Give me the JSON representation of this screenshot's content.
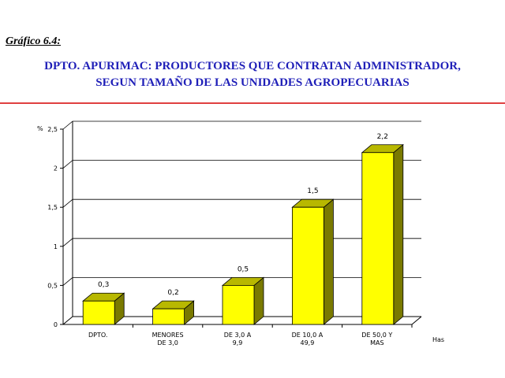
{
  "figure_label": "Gráfico 6.4:",
  "title_lines": [
    "DPTO. APURIMAC: PRODUCTORES QUE CONTRATAN ADMINISTRADOR,",
    "SEGUN TAMAÑO DE LAS UNIDADES AGROPECUARIAS"
  ],
  "colors": {
    "title": "#1f1fb8",
    "rule": "#e04040",
    "bar_front": "#ffff00",
    "bar_top": "#b8b800",
    "bar_side": "#7a7a00"
  },
  "chart_data": {
    "type": "bar",
    "title": "DPTO. APURIMAC: PRODUCTORES QUE CONTRATAN ADMINISTRADOR, SEGUN TAMAÑO DE LAS UNIDADES AGROPECUARIAS",
    "ylabel": "%",
    "xlabel": "Has",
    "ylim": [
      0,
      2.5
    ],
    "y_ticks": [
      "0",
      "0,5",
      "1",
      "1,5",
      "2",
      "2,5"
    ],
    "grid": true,
    "categories": [
      [
        "DPTO."
      ],
      [
        "MENORES",
        "DE 3,0"
      ],
      [
        "DE 3,0 A",
        "9,9"
      ],
      [
        "DE 10,0 A",
        "49,9"
      ],
      [
        "DE 50,0 Y",
        "MAS"
      ]
    ],
    "values": [
      0.3,
      0.2,
      0.5,
      1.5,
      2.2
    ],
    "value_labels": [
      "0,3",
      "0,2",
      "0,5",
      "1,5",
      "2,2"
    ]
  }
}
